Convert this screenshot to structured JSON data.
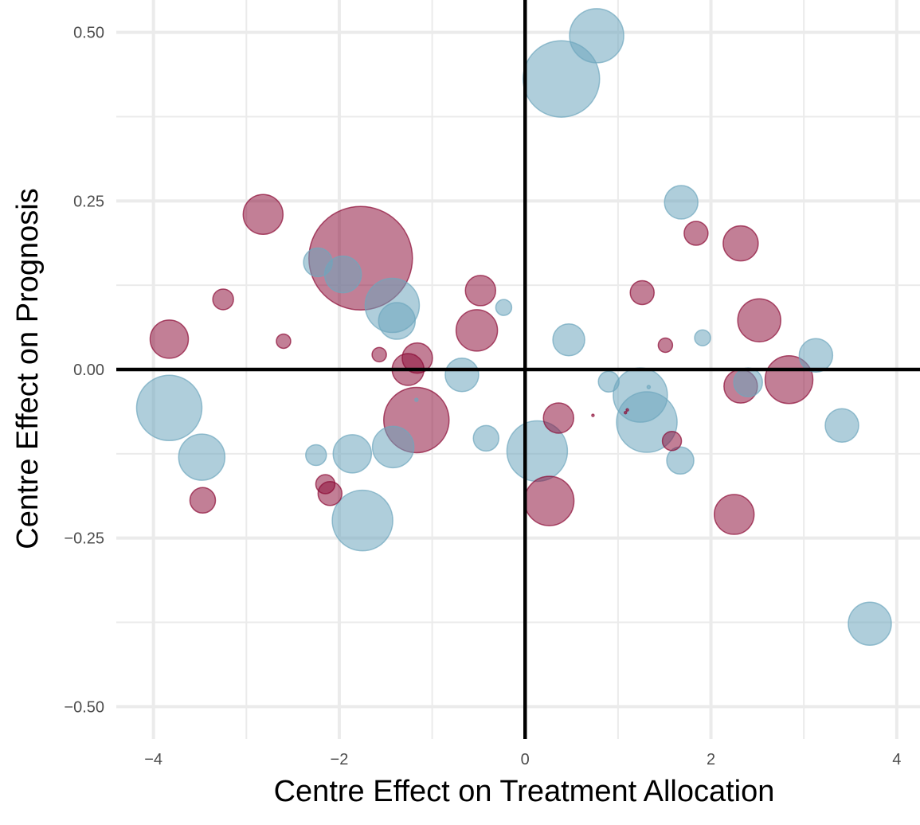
{
  "chart_data": {
    "type": "scatter",
    "title": "",
    "xlabel": "Centre Effect on Treatment Allocation",
    "ylabel": "Centre Effect on Prognosis",
    "xlim": [
      -4.4,
      4.25
    ],
    "ylim": [
      -0.548,
      0.548
    ],
    "x_ticks": [
      -4,
      -2,
      0,
      2,
      4
    ],
    "x_tick_labels": [
      "−4",
      "−2",
      "0",
      "2",
      "4"
    ],
    "y_ticks": [
      -0.5,
      -0.25,
      0,
      0.25,
      0.5
    ],
    "y_tick_labels": [
      "−0.50",
      "−0.25",
      "0.00",
      "0.25",
      "0.50"
    ],
    "grid": true,
    "reference_lines": {
      "x": 0,
      "y": 0
    },
    "legend": "none",
    "colors": {
      "series_a": "#8b0a35",
      "series_b": "#6ea6bd",
      "grid": "#ebebeb",
      "reference": "#000000"
    },
    "series": [
      {
        "color": "#8b0a35",
        "points": [
          {
            "x": -1.77,
            "y": 0.165,
            "size": 65
          },
          {
            "x": -1.17,
            "y": -0.075,
            "size": 41
          },
          {
            "x": -2.82,
            "y": 0.23,
            "size": 25
          },
          {
            "x": -3.83,
            "y": 0.045,
            "size": 24
          },
          {
            "x": 2.52,
            "y": 0.073,
            "size": 27
          },
          {
            "x": 2.84,
            "y": -0.015,
            "size": 30
          },
          {
            "x": 0.26,
            "y": -0.195,
            "size": 31
          },
          {
            "x": 2.25,
            "y": -0.215,
            "size": 25
          },
          {
            "x": 2.32,
            "y": 0.187,
            "size": 22
          },
          {
            "x": 2.32,
            "y": -0.025,
            "size": 21
          },
          {
            "x": -0.52,
            "y": 0.058,
            "size": 26
          },
          {
            "x": -0.48,
            "y": 0.117,
            "size": 19
          },
          {
            "x": -1.26,
            "y": 0.0,
            "size": 20
          },
          {
            "x": -1.16,
            "y": 0.017,
            "size": 19
          },
          {
            "x": 0.36,
            "y": -0.072,
            "size": 19
          },
          {
            "x": 1.26,
            "y": 0.114,
            "size": 15
          },
          {
            "x": 1.84,
            "y": 0.202,
            "size": 15
          },
          {
            "x": -3.47,
            "y": -0.194,
            "size": 16
          },
          {
            "x": -3.25,
            "y": 0.104,
            "size": 13
          },
          {
            "x": -2.1,
            "y": -0.184,
            "size": 15
          },
          {
            "x": -2.15,
            "y": -0.17,
            "size": 12
          },
          {
            "x": 1.58,
            "y": -0.106,
            "size": 12
          },
          {
            "x": -1.57,
            "y": 0.022,
            "size": 9
          },
          {
            "x": -2.6,
            "y": 0.042,
            "size": 9
          },
          {
            "x": 1.51,
            "y": 0.036,
            "size": 9
          },
          {
            "x": 0.73,
            "y": -0.068,
            "size": 1.5
          },
          {
            "x": 1.08,
            "y": -0.064,
            "size": 1.5
          },
          {
            "x": 1.1,
            "y": -0.06,
            "size": 1.5
          }
        ]
      },
      {
        "color": "#6ea6bd",
        "points": [
          {
            "x": 0.39,
            "y": 0.431,
            "size": 48
          },
          {
            "x": 0.77,
            "y": 0.495,
            "size": 34
          },
          {
            "x": -3.83,
            "y": -0.057,
            "size": 41
          },
          {
            "x": -1.75,
            "y": -0.224,
            "size": 38
          },
          {
            "x": 1.31,
            "y": -0.078,
            "size": 38
          },
          {
            "x": 0.13,
            "y": -0.121,
            "size": 38
          },
          {
            "x": 1.24,
            "y": -0.038,
            "size": 34
          },
          {
            "x": -1.43,
            "y": 0.095,
            "size": 34
          },
          {
            "x": -3.48,
            "y": -0.13,
            "size": 29
          },
          {
            "x": -1.42,
            "y": -0.115,
            "size": 26
          },
          {
            "x": 3.71,
            "y": -0.377,
            "size": 27
          },
          {
            "x": -1.86,
            "y": -0.125,
            "size": 24
          },
          {
            "x": -1.96,
            "y": 0.141,
            "size": 23
          },
          {
            "x": -1.38,
            "y": 0.072,
            "size": 23
          },
          {
            "x": 3.41,
            "y": -0.083,
            "size": 21
          },
          {
            "x": 3.13,
            "y": 0.021,
            "size": 21
          },
          {
            "x": 1.68,
            "y": 0.248,
            "size": 21
          },
          {
            "x": -0.68,
            "y": -0.008,
            "size": 21
          },
          {
            "x": 0.47,
            "y": 0.044,
            "size": 20
          },
          {
            "x": -2.23,
            "y": 0.159,
            "size": 18
          },
          {
            "x": 2.4,
            "y": -0.019,
            "size": 18
          },
          {
            "x": 1.67,
            "y": -0.135,
            "size": 17
          },
          {
            "x": -0.42,
            "y": -0.102,
            "size": 16
          },
          {
            "x": 0.9,
            "y": -0.018,
            "size": 13
          },
          {
            "x": -2.25,
            "y": -0.127,
            "size": 13
          },
          {
            "x": -0.23,
            "y": 0.092,
            "size": 10
          },
          {
            "x": 1.91,
            "y": 0.047,
            "size": 10
          },
          {
            "x": -1.17,
            "y": -0.045,
            "size": 2
          },
          {
            "x": 1.33,
            "y": -0.026,
            "size": 2
          }
        ]
      }
    ]
  }
}
